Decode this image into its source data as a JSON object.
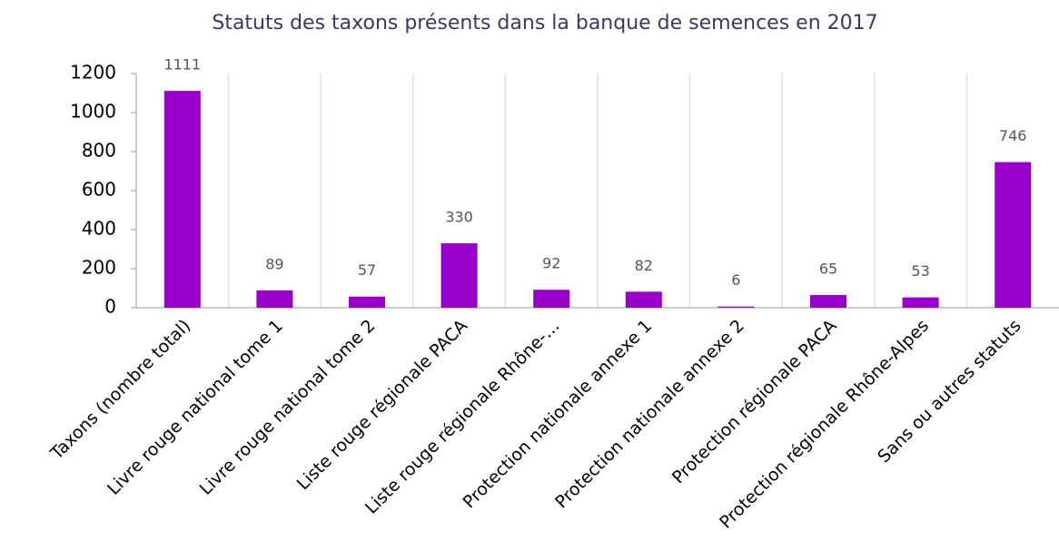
{
  "chart_data": {
    "type": "bar",
    "title": "Statuts des taxons présents dans la banque de semences en 2017",
    "categories": [
      "Taxons (nombre total)",
      "Livre rouge national tome 1",
      "Livre rouge national tome 2",
      "Liste rouge régionale PACA",
      "Liste rouge régionale Rhône-…",
      "Protection nationale annexe 1",
      "Protection nationale annexe 2",
      "Protection régionale PACA",
      "Protection régionale Rhône-Alpes",
      "Sans ou autres statuts"
    ],
    "values": [
      1111,
      89,
      57,
      330,
      92,
      82,
      6,
      65,
      53,
      746
    ],
    "color": "#9900cc",
    "ylim": [
      0,
      1200
    ],
    "yticks": [
      0,
      200,
      400,
      600,
      800,
      1000,
      1200
    ],
    "grid": false
  }
}
